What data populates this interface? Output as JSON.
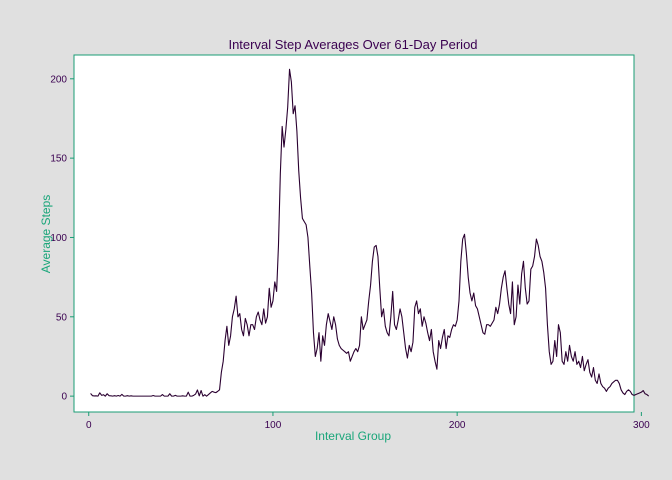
{
  "chart_data": {
    "type": "line",
    "title": "Interval Step Averages Over 61-Day Period",
    "xlabel": "Interval Group",
    "ylabel": "Average Steps",
    "xlim": [
      -8,
      296
    ],
    "ylim": [
      -10,
      215
    ],
    "x_ticks": [
      0,
      100,
      200,
      300
    ],
    "y_ticks": [
      0,
      50,
      100,
      150,
      200
    ],
    "grid": false,
    "legend": "none",
    "colors": {
      "background": "#e0e0e0",
      "panel": "#ffffff",
      "panel_border": "#1a9c74",
      "line": "#2a0030",
      "title_text": "#3a0050",
      "axis_title": "#1aa67a",
      "tick_text": "#3a0050",
      "ticks": "#1a9c74"
    },
    "series": [
      {
        "x_start": 1,
        "x_step": 1,
        "values": [
          1.7,
          0.3,
          0.1,
          0.2,
          0.0,
          2.1,
          0.5,
          0.9,
          0.0,
          1.5,
          0.3,
          0.2,
          0.0,
          0.3,
          0.0,
          0.4,
          0.0,
          1.1,
          0.0,
          0.0,
          0.3,
          0.0,
          0.2,
          0.0,
          0.0,
          0.0,
          0.0,
          0.0,
          0.0,
          0.0,
          0.0,
          0.0,
          0.0,
          0.0,
          0.4,
          0.0,
          0.0,
          0.0,
          0.0,
          1.0,
          0.0,
          0.0,
          0.0,
          1.5,
          0.0,
          0.0,
          0.5,
          0.0,
          0.0,
          0.0,
          0.2,
          0.0,
          0.0,
          2.5,
          0.0,
          0.0,
          0.5,
          1.3,
          3.9,
          0.2,
          3.5,
          0.0,
          0.9,
          0.0,
          1.0,
          2.0,
          3.0,
          2.5,
          2.2,
          3.0,
          4.0,
          15.0,
          22.0,
          35.0,
          44.0,
          32.0,
          38.0,
          50.0,
          55.0,
          63.0,
          50.0,
          52.0,
          42.0,
          38.0,
          49.0,
          45.0,
          38.0,
          45.0,
          45.0,
          42.0,
          50.0,
          53.0,
          48.0,
          45.0,
          55.0,
          46.0,
          50.0,
          68.0,
          56.0,
          60.0,
          72.0,
          66.0,
          95.0,
          140.0,
          170.0,
          157.0,
          168.0,
          182.0,
          206.0,
          198.0,
          178.0,
          183.0,
          167.0,
          142.0,
          125.0,
          112.0,
          110.0,
          108.0,
          100.0,
          82.0,
          65.0,
          40.0,
          25.0,
          30.0,
          40.0,
          22.0,
          38.0,
          32.0,
          45.0,
          52.0,
          47.0,
          42.0,
          50.0,
          45.0,
          36.0,
          32.0,
          30.0,
          29.0,
          28.0,
          27.0,
          28.0,
          22.0,
          25.0,
          28.0,
          30.0,
          28.0,
          32.0,
          50.0,
          42.0,
          45.0,
          48.0,
          60.0,
          70.0,
          85.0,
          94.0,
          95.0,
          88.0,
          68.0,
          50.0,
          55.0,
          44.0,
          40.0,
          38.0,
          50.0,
          66.0,
          45.0,
          42.0,
          48.0,
          55.0,
          50.0,
          40.0,
          30.0,
          24.0,
          32.0,
          28.0,
          34.0,
          56.0,
          60.0,
          52.0,
          55.0,
          44.0,
          50.0,
          46.0,
          40.0,
          35.0,
          42.0,
          28.0,
          22.0,
          17.0,
          35.0,
          30.0,
          37.0,
          42.0,
          30.0,
          38.0,
          37.0,
          42.0,
          45.0,
          44.0,
          48.0,
          60.0,
          85.0,
          99.0,
          102.0,
          90.0,
          75.0,
          65.0,
          60.0,
          65.0,
          57.0,
          55.0,
          50.0,
          45.0,
          40.0,
          39.0,
          45.0,
          45.0,
          44.0,
          46.0,
          48.0,
          56.0,
          52.0,
          58.0,
          68.0,
          75.0,
          79.0,
          68.0,
          58.0,
          52.0,
          72.0,
          45.0,
          50.0,
          70.0,
          58.0,
          77.0,
          85.0,
          68.0,
          58.0,
          60.0,
          80.0,
          82.0,
          88.0,
          99.0,
          95.0,
          88.0,
          85.0,
          78.0,
          68.0,
          45.0,
          28.0,
          20.0,
          22.0,
          35.0,
          25.0,
          45.0,
          40.0,
          22.0,
          20.0,
          28.0,
          22.0,
          32.0,
          25.0,
          22.0,
          28.0,
          20.0,
          22.0,
          18.0,
          25.0,
          16.0,
          20.0,
          23.0,
          15.0,
          12.0,
          18.0,
          10.0,
          8.0,
          14.0,
          8.0,
          6.0,
          5.0,
          3.0,
          5.0,
          6.0,
          8.0,
          9.0,
          10.0,
          10.0,
          8.0,
          4.0,
          2.0,
          1.0,
          3.0,
          4.0,
          3.0,
          1.0,
          0.5,
          1.0,
          1.5,
          2.0,
          2.5,
          3.5,
          1.5,
          1.0,
          0.0
        ]
      }
    ]
  }
}
